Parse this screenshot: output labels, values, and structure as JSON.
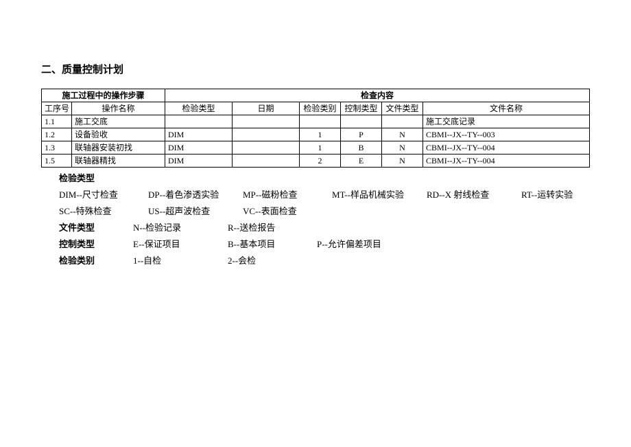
{
  "title": "二、质量控制计划",
  "table": {
    "header_group_ops": "施工过程中的操作步骤",
    "header_group_check": "检查内容",
    "columns": {
      "proc_no": "工序号",
      "op_name": "操作名称",
      "insp_type": "检验类型",
      "date": "日期",
      "insp_cat": "检验类别",
      "ctrl_type": "控制类型",
      "file_type": "文件类型",
      "file_name": "文件名称"
    },
    "rows": [
      {
        "proc_no": "1.1",
        "op_name": "施工交底",
        "insp_type": "",
        "date": "",
        "insp_cat": "",
        "ctrl_type": "",
        "file_type": "",
        "file_name": "施工交底记录"
      },
      {
        "proc_no": "1.2",
        "op_name": "设备验收",
        "insp_type": "DIM",
        "date": "",
        "insp_cat": "1",
        "ctrl_type": "P",
        "file_type": "N",
        "file_name": "CBMI--JX--TY--003"
      },
      {
        "proc_no": "1.3",
        "op_name": "联轴器安装初找",
        "insp_type": "DIM",
        "date": "",
        "insp_cat": "1",
        "ctrl_type": "B",
        "file_type": "N",
        "file_name": "CBMI--JX--TY--004"
      },
      {
        "proc_no": "1.5",
        "op_name": "联轴器精找",
        "insp_type": "DIM",
        "date": "",
        "insp_cat": "2",
        "ctrl_type": "E",
        "file_type": "N",
        "file_name": "CBMI--JX--TY--004"
      }
    ]
  },
  "legend": {
    "insp_type_label": "检验类型",
    "insp_type_items": [
      "DIM--尺寸检查",
      "DP--着色渗透实验",
      "MP--磁粉检查",
      "MT--样品机械实验",
      "RD--X 射线检查",
      "RT--运转实验",
      "SC--特殊检查",
      "US--超声波检查",
      "VC--表面检查"
    ],
    "file_type_label": "文件类型",
    "file_type_items": [
      "N--检验记录",
      "R--送检报告"
    ],
    "ctrl_type_label": "控制类型",
    "ctrl_type_items": [
      "E--保证项目",
      "B--基本项目",
      "P--允许偏差项目"
    ],
    "insp_cat_label": "检验类别",
    "insp_cat_items": [
      "1--自检",
      "2--会检"
    ]
  }
}
